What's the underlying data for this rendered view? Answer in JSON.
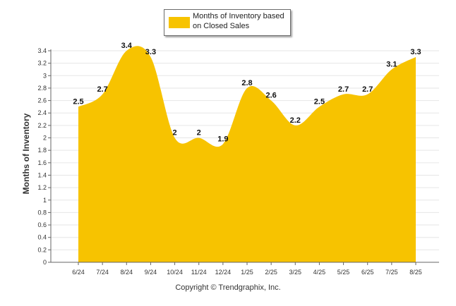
{
  "chart_data": {
    "type": "area",
    "categories": [
      "6/24",
      "7/24",
      "8/24",
      "9/24",
      "10/24",
      "11/24",
      "12/24",
      "1/25",
      "2/25",
      "3/25",
      "4/25",
      "5/25",
      "6/25",
      "7/25",
      "8/25"
    ],
    "series": [
      {
        "name": "Months of Inventory based on Closed Sales",
        "values": [
          2.5,
          2.7,
          3.4,
          3.3,
          2,
          2,
          1.9,
          2.8,
          2.6,
          2.2,
          2.5,
          2.7,
          2.7,
          3.1,
          3.3
        ],
        "color": "#F7C300"
      }
    ],
    "data_labels": [
      "2.5",
      "2.7",
      "3.4",
      "3.3",
      "2",
      "2",
      "1.9",
      "2.8",
      "2.6",
      "2.2",
      "2.5",
      "2.7",
      "2.7",
      "3.1",
      "3.3"
    ],
    "ylabel": "Months of Inventory",
    "xlabel": "",
    "ylim": [
      0,
      3.4
    ],
    "yticks": [
      "0",
      "0.2",
      "0.4",
      "0.6",
      "0.8",
      "1",
      "1.2",
      "1.4",
      "1.6",
      "1.8",
      "2",
      "2.2",
      "2.4",
      "2.6",
      "2.8",
      "3",
      "3.2",
      "3.4"
    ],
    "grid": true,
    "legend_position": "top-center"
  },
  "legend": {
    "label_line1": "Months of Inventory based",
    "label_line2": "on Closed Sales"
  },
  "footer": {
    "copyright": "Copyright © Trendgraphix, Inc."
  }
}
